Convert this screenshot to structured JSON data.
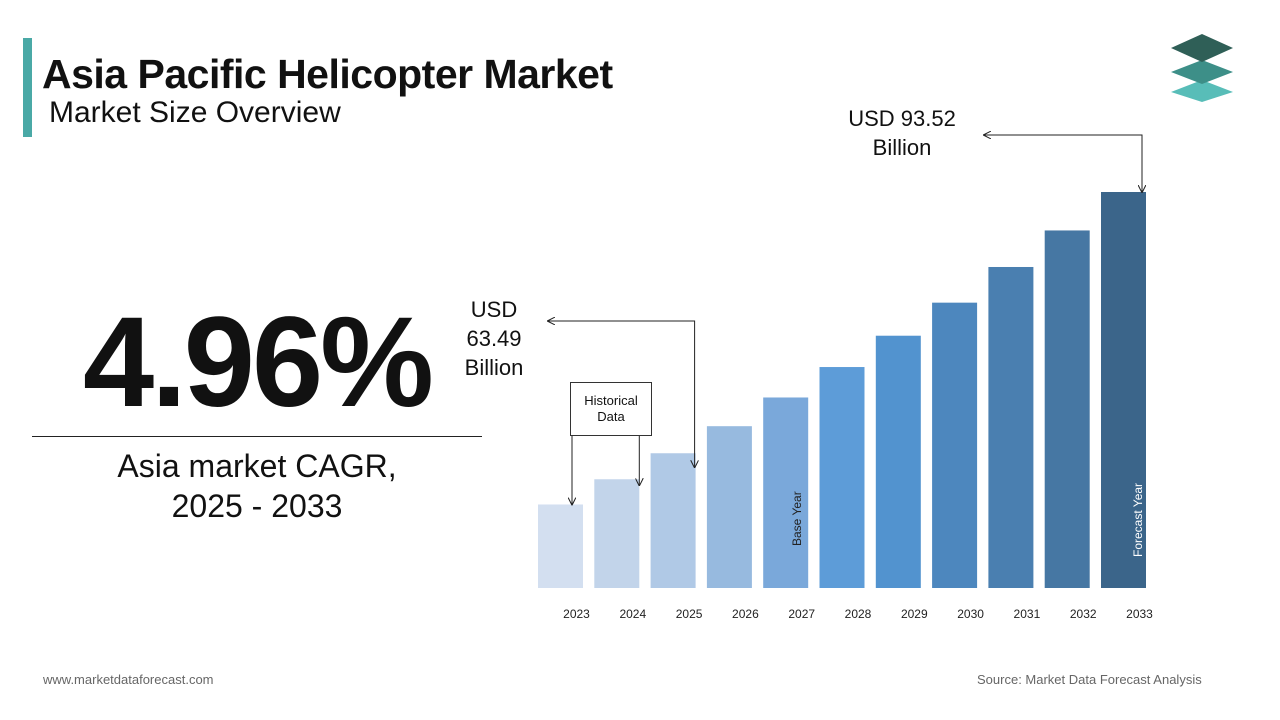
{
  "header": {
    "title": "Asia Pacific Helicopter Market",
    "subtitle": "Market Size Overview"
  },
  "logo": {
    "icon": "stacked-layers-logo",
    "colors": [
      "#2f5f57",
      "#3d8f88",
      "#58bdb8"
    ]
  },
  "cagr": {
    "value": "4.96%",
    "label_line1": "Asia market CAGR,",
    "label_line2": "2025 - 2033"
  },
  "callouts": {
    "historical_line1": "Historical",
    "historical_line2": "Data",
    "low_value": [
      "USD",
      "63.49",
      "Billion"
    ],
    "high_value": [
      "USD 93.52",
      "Billion"
    ],
    "base_year": "Base Year",
    "forecast_year": "Forecast Year"
  },
  "chart_data": {
    "type": "bar",
    "categories": [
      "2023",
      "2024",
      "2025",
      "2026",
      "2027",
      "2028",
      "2029",
      "2030",
      "2031",
      "2032",
      "2033"
    ],
    "values": [
      57.6,
      60.5,
      63.49,
      66.6,
      69.9,
      73.4,
      77.0,
      80.8,
      84.9,
      89.1,
      93.52
    ],
    "ylim": [
      48,
      95
    ],
    "colors": [
      "#d3dff0",
      "#c2d4ea",
      "#b0c9e6",
      "#97badf",
      "#7aa8da",
      "#5d9cd8",
      "#5293cf",
      "#4d87be",
      "#4a7fb0",
      "#4677a3",
      "#3b658a"
    ],
    "annotations": {
      "low": "2025",
      "high": "2033",
      "base_year": "2027",
      "forecast_year": "2033"
    }
  },
  "footer": {
    "website": "www.marketdataforecast.com",
    "source": "Source: Market Data Forecast Analysis"
  }
}
